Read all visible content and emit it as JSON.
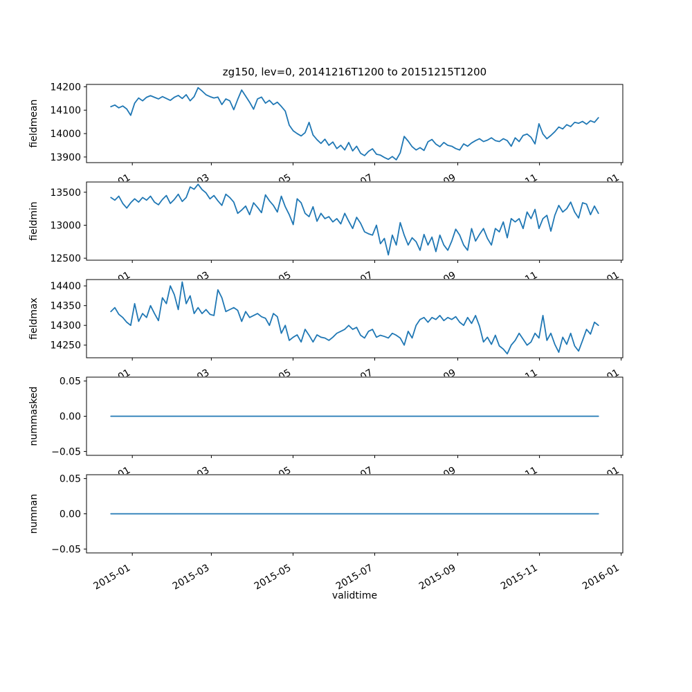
{
  "figure": {
    "title": "zg150, lev=0, 20141216T1200 to 20151215T1200",
    "xlabel": "validtime",
    "background": "#ffffff",
    "line_color": "#1f77b4",
    "axis_color": "#000000"
  },
  "x_axis": {
    "label": "validtime",
    "xlim_days": [
      -18.2,
      382.2
    ],
    "data_day_range": [
      0,
      364
    ],
    "tick_days": [
      16,
      75,
      136,
      197,
      259,
      320,
      381
    ],
    "tick_labels": [
      "2015-01",
      "2015-03",
      "2015-05",
      "2015-07",
      "2015-09",
      "2015-11",
      "2016-01"
    ],
    "between_subplot_visible_labels": [
      "01",
      "03",
      "05",
      "07",
      "09",
      "11",
      "01"
    ],
    "tick_label_rotation_deg": 30
  },
  "chart_data": [
    {
      "type": "line",
      "ylabel": "fieldmean",
      "ytick_values": [
        13900,
        14000,
        14100,
        14200
      ],
      "ytick_labels": [
        "13900",
        "14000",
        "14100",
        "14200"
      ],
      "ylim": [
        13876,
        14210
      ],
      "values": [
        14115,
        14122,
        14110,
        14118,
        14105,
        14078,
        14130,
        14152,
        14140,
        14155,
        14162,
        14155,
        14148,
        14158,
        14150,
        14142,
        14155,
        14163,
        14150,
        14166,
        14140,
        14158,
        14196,
        14182,
        14166,
        14158,
        14152,
        14156,
        14124,
        14148,
        14140,
        14102,
        14146,
        14186,
        14160,
        14134,
        14104,
        14148,
        14156,
        14130,
        14142,
        14124,
        14134,
        14116,
        14096,
        14036,
        14012,
        14000,
        13990,
        14004,
        14048,
        13994,
        13974,
        13958,
        13976,
        13950,
        13964,
        13936,
        13950,
        13930,
        13962,
        13926,
        13946,
        13916,
        13906,
        13924,
        13935,
        13912,
        13908,
        13898,
        13890,
        13902,
        13888,
        13918,
        13988,
        13968,
        13944,
        13930,
        13940,
        13928,
        13965,
        13975,
        13955,
        13944,
        13962,
        13950,
        13946,
        13936,
        13930,
        13956,
        13946,
        13960,
        13970,
        13978,
        13966,
        13972,
        13982,
        13970,
        13966,
        13978,
        13970,
        13946,
        13982,
        13966,
        13992,
        13998,
        13984,
        13956,
        14042,
        13998,
        13978,
        13992,
        14008,
        14028,
        14020,
        14038,
        14030,
        14048,
        14044,
        14052,
        14040,
        14055,
        14048,
        14068
      ]
    },
    {
      "type": "line",
      "ylabel": "fieldmin",
      "ytick_values": [
        12500,
        13000,
        13500
      ],
      "ytick_labels": [
        "12500",
        "13000",
        "13500"
      ],
      "ylim": [
        12470,
        13655
      ],
      "values": [
        13420,
        13380,
        13440,
        13330,
        13260,
        13340,
        13400,
        13350,
        13420,
        13380,
        13440,
        13350,
        13310,
        13390,
        13450,
        13330,
        13390,
        13470,
        13360,
        13420,
        13580,
        13545,
        13620,
        13540,
        13490,
        13400,
        13450,
        13370,
        13300,
        13470,
        13420,
        13350,
        13180,
        13230,
        13290,
        13160,
        13340,
        13270,
        13190,
        13460,
        13370,
        13300,
        13200,
        13440,
        13280,
        13160,
        13010,
        13400,
        13340,
        13180,
        13130,
        13280,
        13060,
        13180,
        13100,
        13130,
        13050,
        13100,
        13020,
        13180,
        13060,
        12950,
        13120,
        13030,
        12900,
        12870,
        12850,
        13000,
        12720,
        12800,
        12550,
        12850,
        12700,
        13040,
        12850,
        12700,
        12810,
        12750,
        12620,
        12860,
        12700,
        12820,
        12600,
        12850,
        12700,
        12620,
        12760,
        12940,
        12850,
        12700,
        12620,
        12950,
        12760,
        12860,
        12950,
        12800,
        12700,
        12950,
        12900,
        13050,
        12810,
        13100,
        13050,
        13100,
        12950,
        13200,
        13100,
        13240,
        12950,
        13100,
        13150,
        12910,
        13150,
        13300,
        13200,
        13250,
        13350,
        13200,
        13110,
        13340,
        13320,
        13160,
        13290,
        13180
      ]
    },
    {
      "type": "line",
      "ylabel": "fieldmax",
      "ytick_values": [
        14250,
        14300,
        14350,
        14400
      ],
      "ytick_labels": [
        "14250",
        "14300",
        "14350",
        "14400"
      ],
      "ylim": [
        14218,
        14416
      ],
      "values": [
        14335,
        14345,
        14328,
        14320,
        14308,
        14300,
        14355,
        14310,
        14330,
        14320,
        14350,
        14330,
        14312,
        14370,
        14355,
        14400,
        14378,
        14340,
        14410,
        14355,
        14375,
        14330,
        14345,
        14330,
        14340,
        14328,
        14325,
        14390,
        14370,
        14335,
        14340,
        14345,
        14338,
        14310,
        14335,
        14320,
        14325,
        14330,
        14322,
        14318,
        14300,
        14330,
        14322,
        14280,
        14300,
        14262,
        14270,
        14276,
        14258,
        14290,
        14275,
        14258,
        14276,
        14270,
        14268,
        14262,
        14270,
        14280,
        14285,
        14290,
        14300,
        14290,
        14295,
        14275,
        14268,
        14285,
        14290,
        14270,
        14275,
        14272,
        14268,
        14280,
        14275,
        14268,
        14250,
        14285,
        14268,
        14300,
        14315,
        14320,
        14308,
        14320,
        14315,
        14325,
        14312,
        14320,
        14315,
        14322,
        14308,
        14300,
        14320,
        14305,
        14325,
        14298,
        14258,
        14270,
        14252,
        14275,
        14248,
        14240,
        14228,
        14250,
        14262,
        14280,
        14265,
        14250,
        14258,
        14280,
        14268,
        14325,
        14262,
        14280,
        14252,
        14232,
        14270,
        14252,
        14280,
        14248,
        14235,
        14262,
        14290,
        14278,
        14308,
        14300
      ]
    },
    {
      "type": "line",
      "ylabel": "nummasked",
      "ytick_values": [
        -0.05,
        0.0,
        0.05
      ],
      "ytick_labels": [
        "−0.05",
        "0.00",
        "0.05"
      ],
      "ylim": [
        -0.0555,
        0.0555
      ],
      "values": [
        0,
        0
      ]
    },
    {
      "type": "line",
      "ylabel": "numnan",
      "ytick_values": [
        -0.05,
        0.0,
        0.05
      ],
      "ytick_labels": [
        "−0.05",
        "0.00",
        "0.05"
      ],
      "ylim": [
        -0.0555,
        0.0555
      ],
      "values": [
        0,
        0
      ]
    }
  ]
}
